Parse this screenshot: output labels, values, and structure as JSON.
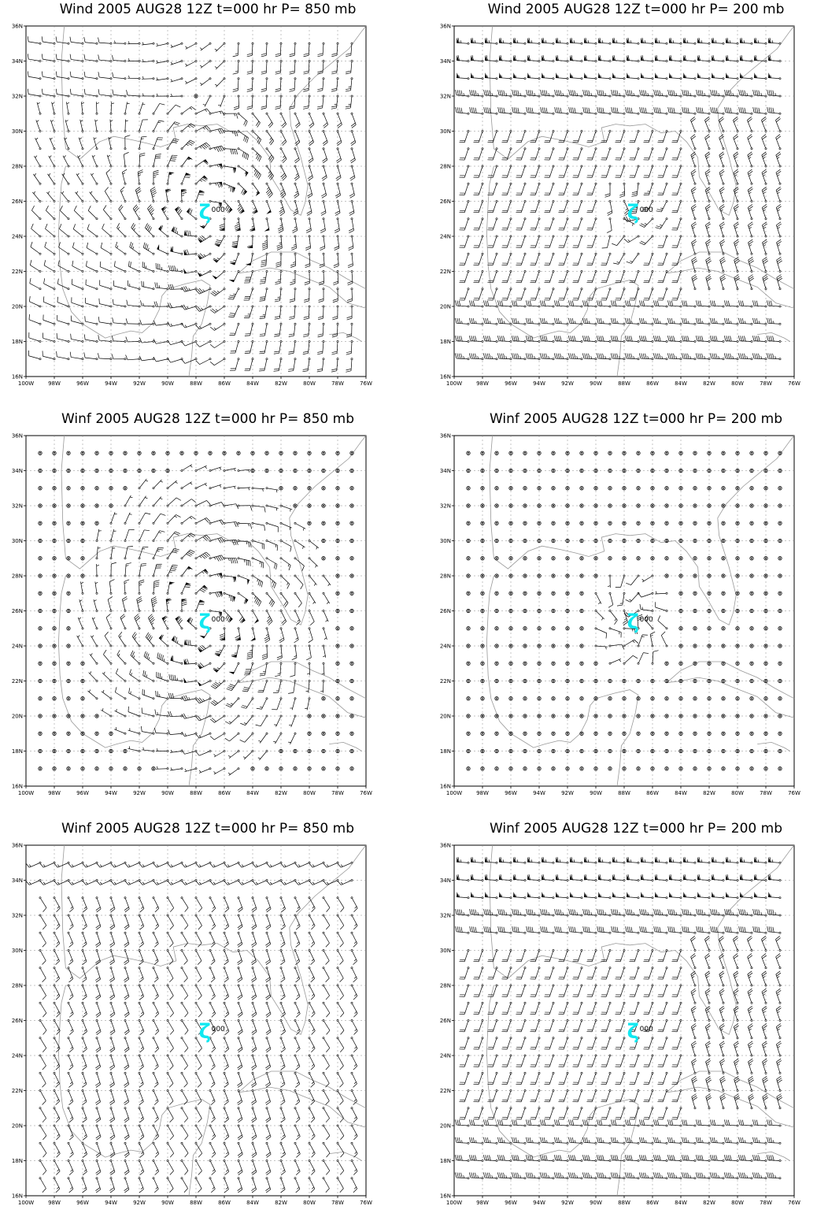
{
  "panels": [
    {
      "title": "Wind 2005 AUG28 12Z t=000 hr P= 850 mb",
      "field": "total-850"
    },
    {
      "title": "Wind 2005 AUG28 12Z t=000 hr P= 200 mb",
      "field": "total-200"
    },
    {
      "title": "Winf 2005 AUG28 12Z t=000 hr P= 850 mb",
      "field": "vortex-850"
    },
    {
      "title": "Winf 2005 AUG28 12Z t=000 hr P= 200 mb",
      "field": "vortex-200"
    },
    {
      "title": "Winf 2005 AUG28 12Z t=000 hr P= 850 mb",
      "field": "env-850"
    },
    {
      "title": "Winf 2005 AUG28 12Z t=000 hr P= 200 mb",
      "field": "env-200"
    }
  ],
  "axes": {
    "x_ticks": [
      "100W",
      "98W",
      "96W",
      "94W",
      "92W",
      "90W",
      "88W",
      "86W",
      "84W",
      "82W",
      "80W",
      "78W",
      "76W"
    ],
    "y_ticks": [
      "16N",
      "18N",
      "20N",
      "22N",
      "24N",
      "26N",
      "28N",
      "30N",
      "32N",
      "34N",
      "36N"
    ],
    "lon_range": [
      -100,
      -76
    ],
    "lat_range": [
      16,
      36
    ]
  },
  "storm": {
    "lon": -87.3,
    "lat": 25.4,
    "label": "000",
    "symbol": "hurricane-symbol",
    "color": "#10e8f0"
  },
  "colors": {
    "barb": "#000000",
    "coast": "#999999",
    "grid": "#888888"
  }
}
